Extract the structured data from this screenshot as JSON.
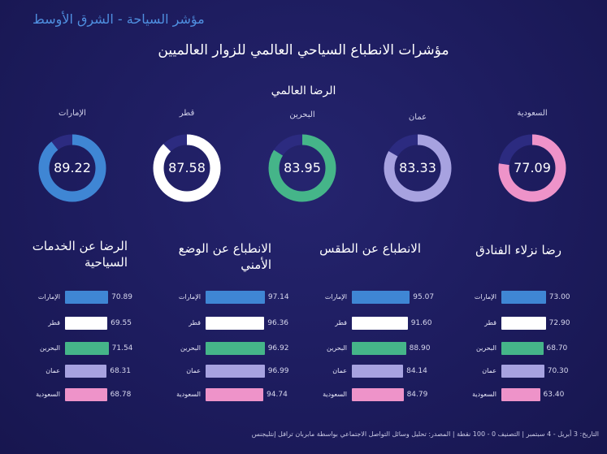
{
  "brand": "مؤشر السياحة - الشرق الأوسط",
  "title": "مؤشرات الانطباع السياحي العالمي للزوار العالميين",
  "donut_section_title": "الرضا العالمي",
  "footer": "التاريخ: 3 أبريل - 4 سبتمبر | التصنيف 0 - 100 نقطة | المصدر: تحليل وسائل التواصل الاجتماعي بواسطة مابربان ترافل إنتليجنس",
  "colors": {
    "background": "#1d1c5e",
    "emirates": "#3f86d4",
    "qatar": "#ffffff",
    "bahrain": "#45b589",
    "oman": "#a7a2e0",
    "saudi": "#ee93c9",
    "track": "#2c2b80"
  },
  "chart_data": [
    {
      "type": "donut",
      "title": "الرضا العالمي",
      "max": 100,
      "items": [
        {
          "label": "الإمارات",
          "value": 89.22,
          "color": "#3f86d4"
        },
        {
          "label": "قطر",
          "value": 87.58,
          "color": "#ffffff"
        },
        {
          "label": "البحرين",
          "value": 83.95,
          "color": "#45b589"
        },
        {
          "label": "عمان",
          "value": 83.33,
          "color": "#a7a2e0"
        },
        {
          "label": "السعودية",
          "value": 77.09,
          "color": "#ee93c9"
        }
      ]
    },
    {
      "type": "bar",
      "orientation": "horizontal",
      "title": "الرضا عن الخدمات السياحية",
      "categories": [
        "الإمارات",
        "قطر",
        "البحرين",
        "عمان",
        "السعودية"
      ],
      "values": [
        70.89,
        69.55,
        71.54,
        68.31,
        68.78
      ],
      "value_labels": [
        "70.89",
        "69.55",
        "71.54",
        "68.31",
        "68.78"
      ],
      "colors": [
        "#3f86d4",
        "#ffffff",
        "#45b589",
        "#a7a2e0",
        "#ee93c9"
      ],
      "xlim": [
        0,
        100
      ]
    },
    {
      "type": "bar",
      "orientation": "horizontal",
      "title": "الانطباع عن الوضع الأمني",
      "categories": [
        "الإمارات",
        "قطر",
        "البحرين",
        "عمان",
        "السعودية"
      ],
      "values": [
        97.14,
        96.36,
        96.92,
        96.99,
        94.74
      ],
      "value_labels": [
        "97.14",
        "96.36",
        "96.92",
        "96.99",
        "94.74"
      ],
      "colors": [
        "#3f86d4",
        "#ffffff",
        "#45b589",
        "#a7a2e0",
        "#ee93c9"
      ],
      "xlim": [
        0,
        100
      ]
    },
    {
      "type": "bar",
      "orientation": "horizontal",
      "title": "الانطباع عن الطقس",
      "categories": [
        "الإمارات",
        "قطر",
        "البحرين",
        "عمان",
        "السعودية"
      ],
      "values": [
        95.07,
        91.6,
        88.9,
        84.14,
        84.79
      ],
      "value_labels": [
        "95.07",
        "91.60",
        "88.90",
        "84.14",
        "84.79"
      ],
      "colors": [
        "#3f86d4",
        "#ffffff",
        "#45b589",
        "#a7a2e0",
        "#ee93c9"
      ],
      "xlim": [
        0,
        100
      ]
    },
    {
      "type": "bar",
      "orientation": "horizontal",
      "title": "رضا نزلاء الفنادق",
      "categories": [
        "الإمارات",
        "قطر",
        "البحرين",
        "عمان",
        "السعودية"
      ],
      "values": [
        73.0,
        72.9,
        68.7,
        70.3,
        63.4
      ],
      "value_labels": [
        "73.00",
        "72.90",
        "68.70",
        "70.30",
        "63.40"
      ],
      "colors": [
        "#3f86d4",
        "#ffffff",
        "#45b589",
        "#a7a2e0",
        "#ee93c9"
      ],
      "xlim": [
        0,
        100
      ]
    }
  ]
}
